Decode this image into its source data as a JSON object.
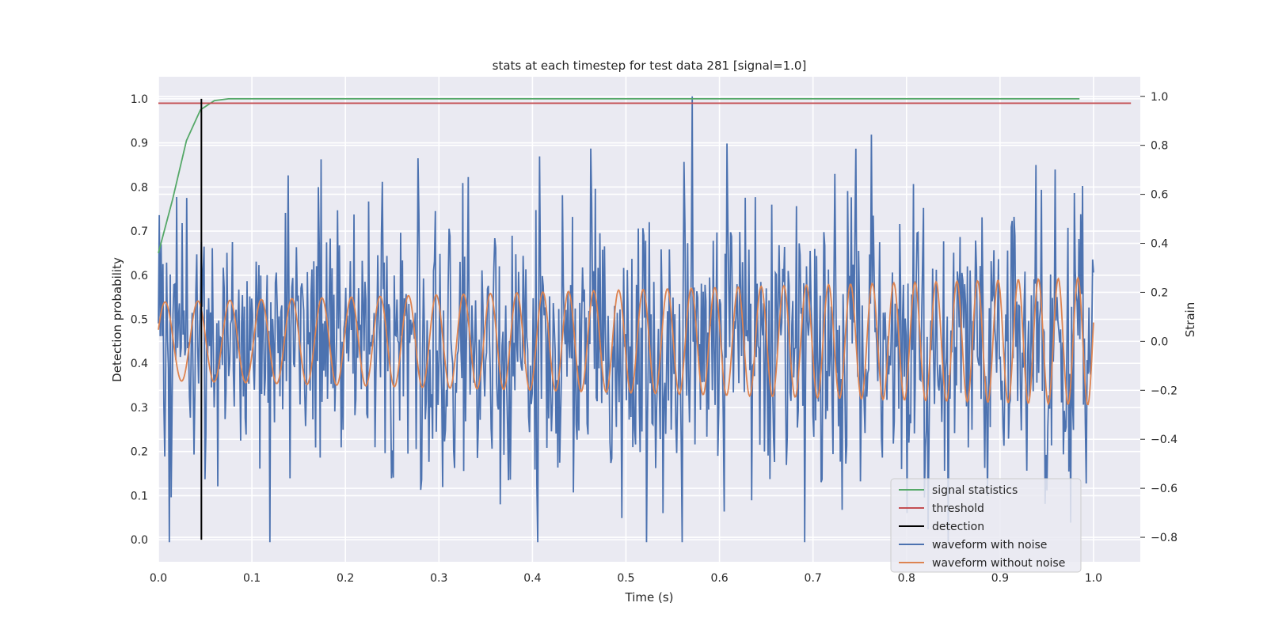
{
  "chart_data": {
    "type": "line",
    "title": "stats at each timestep for test data 281 [signal=1.0]",
    "xlabel": "Time (s)",
    "ylabel_left": "Detection probability",
    "ylabel_right": "Strain",
    "xlim": [
      0.0,
      1.05
    ],
    "ylim_left": [
      -0.05,
      1.05
    ],
    "ylim_right": [
      -0.9,
      1.08
    ],
    "x_ticks": [
      0.0,
      0.1,
      0.2,
      0.3,
      0.4,
      0.5,
      0.6,
      0.7,
      0.8,
      0.9,
      1.0
    ],
    "x_tick_labels": [
      "0.0",
      "0.1",
      "0.2",
      "0.3",
      "0.4",
      "0.5",
      "0.6",
      "0.7",
      "0.8",
      "0.9",
      "1.0"
    ],
    "y_left_ticks": [
      0.0,
      0.1,
      0.2,
      0.3,
      0.4,
      0.5,
      0.6,
      0.7,
      0.8,
      0.9,
      1.0
    ],
    "y_left_tick_labels": [
      "0.0",
      "0.1",
      "0.2",
      "0.3",
      "0.4",
      "0.5",
      "0.6",
      "0.7",
      "0.8",
      "0.9",
      "1.0"
    ],
    "y_right_ticks": [
      -0.8,
      -0.6,
      -0.4,
      -0.2,
      0.0,
      0.2,
      0.4,
      0.6,
      0.8,
      1.0
    ],
    "y_right_tick_labels": [
      "−0.8",
      "−0.6",
      "−0.4",
      "−0.2",
      "0.0",
      "0.2",
      "0.4",
      "0.6",
      "0.8",
      "1.0"
    ],
    "grid": true,
    "legend_position": "lower right",
    "colors": {
      "background": "#eaeaf2",
      "grid": "#ffffff",
      "signal_statistics": "#55a868",
      "threshold": "#c44e52",
      "detection": "#000000",
      "waveform_with_noise": "#4c72b0",
      "waveform_without_noise": "#dd8452"
    },
    "series": [
      {
        "name": "signal statistics",
        "axis": "left",
        "x": [
          0.0,
          0.015,
          0.03,
          0.045,
          0.06,
          0.075,
          0.09,
          0.2,
          0.4,
          0.6,
          0.8,
          0.985
        ],
        "y": [
          0.65,
          0.77,
          0.905,
          0.975,
          0.996,
          1.0,
          1.0,
          1.0,
          1.0,
          1.0,
          1.0,
          1.0
        ]
      },
      {
        "name": "threshold",
        "axis": "left",
        "x": [
          0.0,
          1.04
        ],
        "y": [
          0.99,
          0.99
        ]
      },
      {
        "name": "detection",
        "axis": "left",
        "x": [
          0.046,
          0.046
        ],
        "y": [
          0.0,
          1.0
        ]
      },
      {
        "name": "waveform with noise",
        "axis": "right",
        "x_start": 0.0,
        "x_end": 1.0,
        "samples": 1024,
        "y_range": [
          -0.82,
          1.0
        ],
        "y_std_approx": 0.3
      },
      {
        "name": "waveform without noise",
        "axis": "right",
        "x_start": 0.0,
        "x_end": 1.0,
        "waveform": "chirp",
        "frequency_hz": [
          28,
          48
        ],
        "amplitude": [
          0.16,
          0.26
        ]
      }
    ]
  }
}
